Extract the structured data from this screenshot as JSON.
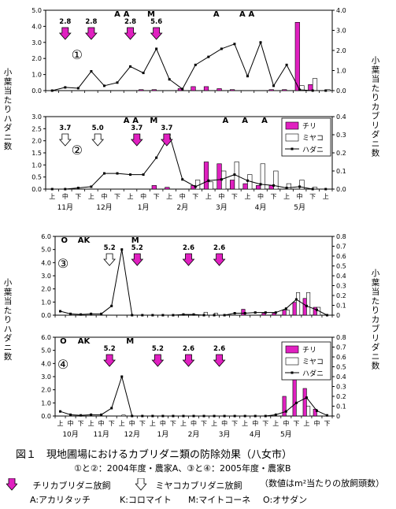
{
  "colors": {
    "chiri": "#e020c0",
    "miyako": "#ffffff",
    "line": "#000000",
    "axis": "#000000"
  },
  "axis_titles": {
    "left": "小葉当たりハダニ数",
    "right": "小葉当たりカブリダニ数"
  },
  "caption": {
    "figure": "図１　現地圃場におけるカブリダニ類の防除効果（八女市）",
    "note": "①と②：2004年度・農家A、③と④：2005年度・農家B",
    "legend_chiri": "チリカブリダニ放飼",
    "legend_miyako": "ミヤコカブリダニ放飼",
    "legend_unit": "（数値はm²当たりの放飼頭数）",
    "abbrev": [
      "A:アカリタッチ",
      "K:コロマイト",
      "M:マイトコーネ",
      "O:オサダン"
    ]
  },
  "legend_items": {
    "chiri": "チリ",
    "miyako": "ミヤコ",
    "hadani": "ハダニ"
  },
  "chart_data": [
    {
      "type": "bar",
      "panel": "①",
      "ylim": [
        0,
        5
      ],
      "y_ticks": [
        "0.0",
        "1.0",
        "2.0",
        "3.0",
        "4.0",
        "5.0"
      ],
      "y2lim": [
        0,
        4
      ],
      "y2_ticks": [
        "0.0",
        "1.0",
        "2.0",
        "3.0",
        "4.0"
      ],
      "x_ticks": [],
      "months": [],
      "markers": [
        {
          "x": 1,
          "kind": "chiri",
          "label": "2.8"
        },
        {
          "x": 3,
          "kind": "chiri",
          "label": "2.8"
        },
        {
          "x": 6,
          "kind": "chiri",
          "label": "2.8"
        },
        {
          "x": 8,
          "kind": "chiri",
          "label": "5.6"
        }
      ],
      "pesticides": [
        {
          "x": 5,
          "text": "A"
        },
        {
          "x": 5.7,
          "text": "A"
        },
        {
          "x": 7.6,
          "text": "M"
        },
        {
          "x": 12.6,
          "text": "A"
        },
        {
          "x": 14.6,
          "text": "A"
        },
        {
          "x": 15.3,
          "text": "A"
        }
      ],
      "hadani": [
        0,
        0.2,
        0.15,
        1.2,
        0.3,
        0.5,
        1.5,
        1.1,
        2.6,
        0.7,
        0.1,
        1.6,
        2.1,
        2.6,
        2.9,
        0.9,
        3.0,
        0.3,
        1.6,
        0.05,
        0,
        0
      ],
      "chiri": [
        0,
        0,
        0,
        0,
        0,
        0,
        0,
        0.05,
        0.05,
        0,
        0.1,
        0.2,
        0.2,
        0.1,
        0.05,
        0,
        0,
        0.05,
        0.05,
        3.4,
        0.3,
        0
      ],
      "miyako": [
        0,
        0,
        0,
        0,
        0,
        0,
        0,
        0,
        0,
        0,
        0,
        0,
        0,
        0,
        0,
        0,
        0,
        0,
        0,
        0.25,
        0.6,
        0.05
      ]
    },
    {
      "type": "bar",
      "panel": "②",
      "ylim": [
        0,
        3
      ],
      "y_ticks": [
        "0.0",
        "0.5",
        "1.0",
        "1.5",
        "2.0",
        "2.5",
        "3.0"
      ],
      "y2lim": [
        0,
        0.4
      ],
      "y2_ticks": [
        "0.0",
        "0.1",
        "0.2",
        "0.3",
        "0.4"
      ],
      "x_ticks": [
        "上",
        "中",
        "下",
        "上",
        "中",
        "下",
        "上",
        "中",
        "下",
        "上",
        "中",
        "下",
        "上",
        "中",
        "下",
        "上",
        "中",
        "下",
        "上",
        "中",
        "下",
        "上"
      ],
      "months": [
        "11月",
        "12月",
        "1月",
        "2月",
        "3月",
        "4月",
        "5月"
      ],
      "markers": [
        {
          "x": 1,
          "kind": "miyako",
          "label": "3.7"
        },
        {
          "x": 3.5,
          "kind": "miyako",
          "label": "5.0"
        },
        {
          "x": 6.5,
          "kind": "chiri",
          "label": "3.7"
        },
        {
          "x": 8.8,
          "kind": "chiri",
          "label": "3.7"
        }
      ],
      "pesticides": [
        {
          "x": 5.7,
          "text": "A"
        },
        {
          "x": 6.4,
          "text": "A"
        },
        {
          "x": 7.8,
          "text": "M"
        },
        {
          "x": 13.3,
          "text": "A"
        },
        {
          "x": 14.8,
          "text": "A"
        },
        {
          "x": 16.3,
          "text": "A"
        }
      ],
      "hadani": [
        0,
        0,
        0.05,
        0.1,
        0.65,
        0.65,
        0.6,
        0.6,
        1.3,
        2.25,
        0.4,
        0.1,
        0.35,
        0.4,
        0.6,
        0.35,
        0.2,
        0.15,
        0.05,
        0.1,
        0,
        0
      ],
      "chiri": [
        0,
        0,
        0,
        0,
        0,
        0,
        0,
        0,
        0.02,
        0.01,
        0,
        0.02,
        0.15,
        0.14,
        0.05,
        0.03,
        0.02,
        0.02,
        0,
        0,
        0,
        0
      ],
      "miyako": [
        0,
        0,
        0,
        0,
        0,
        0,
        0,
        0,
        0,
        0,
        0,
        0.05,
        0.04,
        0.1,
        0.15,
        0.08,
        0.14,
        0.1,
        0.03,
        0.05,
        0.01,
        0
      ]
    },
    {
      "type": "bar",
      "panel": "③",
      "ylim": [
        0,
        6
      ],
      "y_ticks": [
        "0.0",
        "1.0",
        "2.0",
        "3.0",
        "4.0",
        "5.0",
        "6.0"
      ],
      "y2lim": [
        0,
        0.8
      ],
      "y2_ticks": [
        "0",
        "0.1",
        "0.2",
        "0.3",
        "0.4",
        "0.5",
        "0.6",
        "0.7",
        "0.8"
      ],
      "x_ticks": [],
      "months": [],
      "markers": [
        {
          "x": 4.8,
          "kind": "miyako",
          "label": "5.2"
        },
        {
          "x": 7.5,
          "kind": "chiri",
          "label": "5.2"
        },
        {
          "x": 12.5,
          "kind": "chiri",
          "label": "2.6"
        },
        {
          "x": 15.5,
          "kind": "chiri",
          "label": "2.6"
        }
      ],
      "pesticides": [
        {
          "x": 0.4,
          "text": "O"
        },
        {
          "x": 2.3,
          "text": "AK"
        },
        {
          "x": 7.3,
          "text": "M"
        }
      ],
      "hadani": [
        0.3,
        0.1,
        0.05,
        0.1,
        0.1,
        0.7,
        5.0,
        0,
        0,
        0,
        0,
        0,
        0.05,
        0.05,
        0,
        0,
        0,
        0.15,
        0.15,
        0.2,
        0.2,
        0.2,
        0.5,
        1.2,
        0.7,
        0.4,
        0
      ],
      "chiri": [
        0,
        0,
        0,
        0,
        0,
        0,
        0,
        0,
        0,
        0,
        0,
        0,
        0,
        0,
        0,
        0,
        0,
        0,
        0.06,
        0,
        0.02,
        0.02,
        0.05,
        0.13,
        0.17,
        0.08,
        0
      ],
      "miyako": [
        0,
        0,
        0,
        0,
        0,
        0,
        0,
        0,
        0,
        0,
        0,
        0,
        0,
        0,
        0.03,
        0.02,
        0,
        0,
        0,
        0,
        0,
        0,
        0.05,
        0.23,
        0.23,
        0.08,
        0
      ]
    },
    {
      "type": "bar",
      "panel": "④",
      "ylim": [
        0,
        6
      ],
      "y_ticks": [
        "0.0",
        "1.0",
        "2.0",
        "3.0",
        "4.0",
        "5.0",
        "6.0"
      ],
      "y2lim": [
        0,
        0.8
      ],
      "y2_ticks": [
        "0",
        "0.1",
        "0.2",
        "0.3",
        "0.4",
        "0.5",
        "0.6",
        "0.7",
        "0.8"
      ],
      "x_ticks": [
        "上",
        "中",
        "下",
        "上",
        "中",
        "下",
        "上",
        "中",
        "下",
        "上",
        "中",
        "下",
        "上",
        "中",
        "下",
        "上",
        "中",
        "下",
        "上",
        "中",
        "下",
        "上",
        "中",
        "下",
        "上",
        "中",
        "下"
      ],
      "months": [
        "10月",
        "11月",
        "12月",
        "1月",
        "2月",
        "3月",
        "4月",
        "5月"
      ],
      "markers": [
        {
          "x": 4.8,
          "kind": "chiri",
          "label": "5.2"
        },
        {
          "x": 9.5,
          "kind": "chiri",
          "label": "5.2"
        },
        {
          "x": 12.5,
          "kind": "chiri",
          "label": "2.6"
        },
        {
          "x": 15.5,
          "kind": "chiri",
          "label": "2.6"
        }
      ],
      "pesticides": [
        {
          "x": 0.3,
          "text": "O"
        },
        {
          "x": 2.3,
          "text": "AK"
        },
        {
          "x": 6.8,
          "text": "M"
        }
      ],
      "hadani": [
        0.35,
        0.1,
        0.05,
        0.1,
        0.1,
        0.6,
        3.0,
        0,
        0,
        0,
        0,
        0,
        0,
        0,
        0,
        0,
        0,
        0,
        0,
        0,
        0,
        0.1,
        0.35,
        1.0,
        1.4,
        0.4,
        0.05
      ],
      "chiri": [
        0,
        0,
        0,
        0,
        0,
        0,
        0,
        0,
        0,
        0,
        0,
        0,
        0,
        0,
        0,
        0,
        0,
        0,
        0,
        0,
        0,
        0,
        0.2,
        0.38,
        0.28,
        0.07,
        0
      ],
      "miyako": [
        0,
        0,
        0,
        0,
        0,
        0,
        0.01,
        0,
        0,
        0,
        0,
        0,
        0,
        0,
        0,
        0,
        0,
        0,
        0,
        0,
        0,
        0,
        0,
        0,
        0.1,
        0,
        0
      ]
    }
  ]
}
